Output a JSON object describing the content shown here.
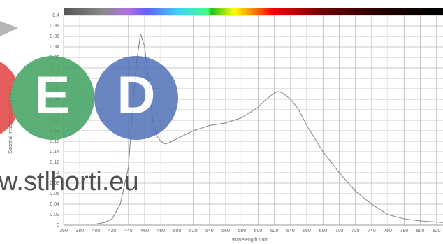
{
  "chart_data": {
    "type": "line",
    "xlabel": "Wavelength / nm",
    "ylabel": "Spectral Irradiance / W/(m²nm)",
    "x": [
      380,
      400,
      410,
      420,
      430,
      440,
      445,
      450,
      455,
      460,
      465,
      470,
      475,
      480,
      485,
      490,
      500,
      520,
      540,
      560,
      580,
      600,
      610,
      620,
      625,
      630,
      640,
      650,
      660,
      680,
      700,
      720,
      740,
      760,
      780,
      800,
      820,
      828
    ],
    "values": [
      0.002,
      0.002,
      0.005,
      0.012,
      0.04,
      0.11,
      0.22,
      0.31,
      0.365,
      0.34,
      0.27,
      0.2,
      0.17,
      0.16,
      0.155,
      0.157,
      0.165,
      0.18,
      0.19,
      0.195,
      0.205,
      0.225,
      0.24,
      0.252,
      0.255,
      0.252,
      0.24,
      0.22,
      0.19,
      0.14,
      0.1,
      0.065,
      0.04,
      0.02,
      0.012,
      0.008,
      0.006,
      0.005
    ],
    "color": "#8a8a8a",
    "xlim": [
      360,
      828
    ],
    "ylim": [
      0,
      0.4
    ],
    "xticks": [
      360,
      380,
      400,
      420,
      440,
      460,
      480,
      500,
      520,
      540,
      560,
      580,
      600,
      620,
      640,
      660,
      680,
      700,
      720,
      740,
      760,
      780,
      800,
      820
    ],
    "yticks": [
      0,
      0.02,
      0.04,
      0.06,
      0.08,
      0.1,
      0.12,
      0.14,
      0.16,
      0.18,
      0.2,
      0.22,
      0.24,
      0.26,
      0.28,
      0.3,
      0.32,
      0.34,
      0.36,
      0.38,
      0.4
    ],
    "grid": true
  },
  "watermark": {
    "letter_1": "E",
    "letter_2": "D",
    "url": "w.stlhorti.eu"
  }
}
